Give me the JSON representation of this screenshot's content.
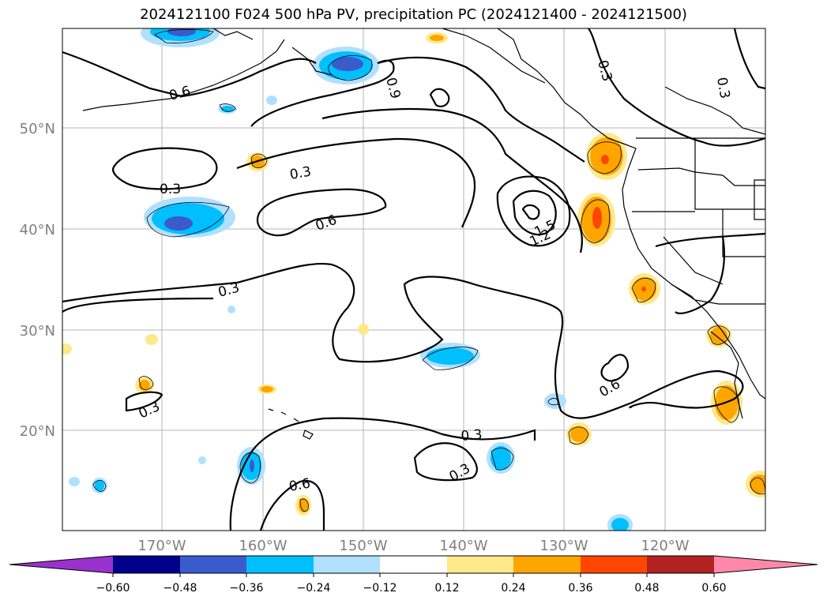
{
  "title": "2024121100 F024 500 hPa PV, precipitation PC (2024121400 - 2024121500)",
  "lat_labels": [
    "50°N",
    "40°N",
    "30°N",
    "20°N"
  ],
  "lon_labels": [
    "170°W",
    "160°W",
    "150°W",
    "140°W",
    "130°W",
    "120°W"
  ],
  "contour_labels": [
    "0.6",
    "0.9",
    "0.3",
    "0.3",
    "0.3",
    "0.3",
    "0.6",
    "1.5",
    "1.2",
    "0.3",
    "0.6",
    "0.3",
    "0.3",
    "0.3",
    "0.6"
  ],
  "colorbar": {
    "ticks": [
      "−0.60",
      "−0.48",
      "−0.36",
      "−0.24",
      "−0.12",
      "0.12",
      "0.24",
      "0.36",
      "0.48",
      "0.60"
    ],
    "colors": [
      "#9932cc",
      "#00008b",
      "#3a5bcc",
      "#00bfff",
      "#b0e0ff",
      "#ffffff",
      "#ffe88a",
      "#ffa500",
      "#ff4500",
      "#b22222",
      "#ff88aa"
    ]
  }
}
